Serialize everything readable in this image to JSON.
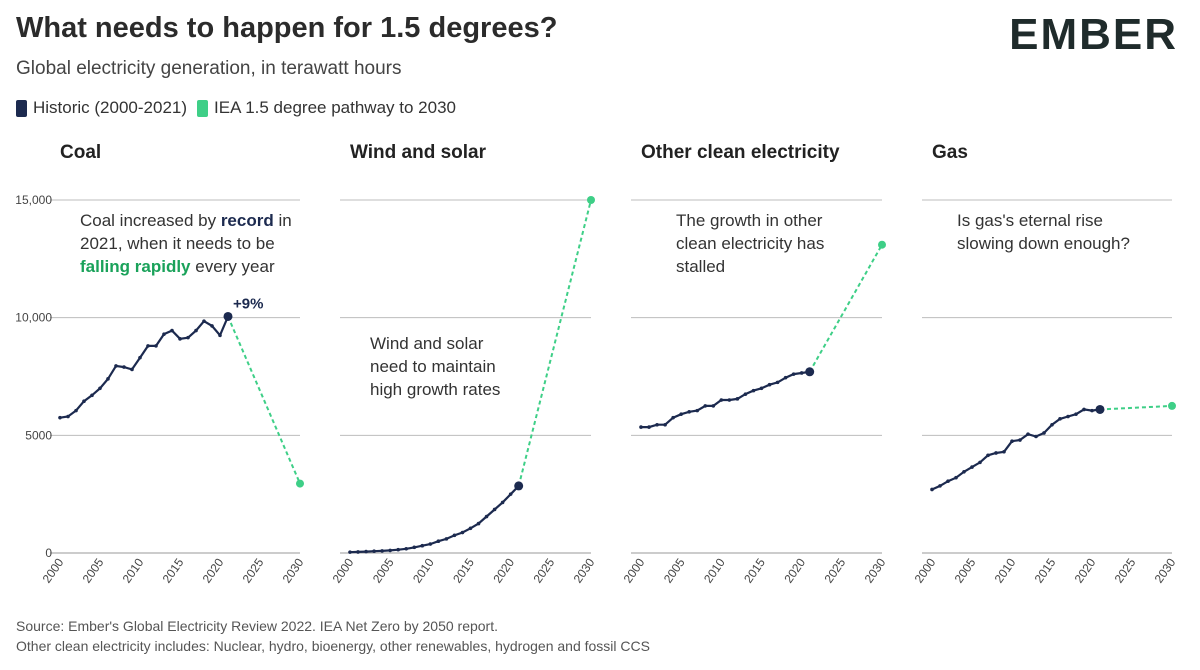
{
  "header": {
    "title": "What needs to happen for 1.5 degrees?",
    "subtitle": "Global electricity generation, in terawatt hours",
    "logo": "EMBER"
  },
  "legend": [
    {
      "label": "Historic (2000-2021)",
      "color": "#1c2a4f"
    },
    {
      "label": "IEA 1.5 degree pathway to 2030",
      "color": "#3ecf87"
    }
  ],
  "footer": {
    "source": "Source: Ember's Global Electricity Review 2022. IEA Net Zero by 2050 report.",
    "note": "Other clean electricity includes: Nuclear, hydro, bioenergy, other renewables, hydrogen and fossil CCS"
  },
  "colors": {
    "historic": "#1c2a4f",
    "pathway": "#3ecf87",
    "highlight_green": "#1aa25a",
    "grid": "#bdbdbd"
  },
  "chart_data": {
    "type": "line",
    "ylim": [
      0,
      15000
    ],
    "y_ticks": [
      0,
      5000,
      10000,
      15000
    ],
    "y_tick_labels": [
      "0",
      "5000",
      "10,000",
      "15,000"
    ],
    "xlim": [
      2000,
      2030
    ],
    "x_ticks": [
      "2000",
      "2005",
      "2010",
      "2015",
      "2020",
      "2025",
      "2030"
    ],
    "grid": true,
    "legend_position": "top-left",
    "panels": [
      {
        "title": "Coal",
        "historic": {
          "years": [
            2000,
            2001,
            2002,
            2003,
            2004,
            2005,
            2006,
            2007,
            2008,
            2009,
            2010,
            2011,
            2012,
            2013,
            2014,
            2015,
            2016,
            2017,
            2018,
            2019,
            2020,
            2021
          ],
          "values": [
            5750,
            5800,
            6050,
            6450,
            6700,
            7000,
            7400,
            7950,
            7900,
            7800,
            8300,
            8800,
            8800,
            9300,
            9450,
            9100,
            9150,
            9450,
            9850,
            9650,
            9250,
            10050
          ]
        },
        "pathway": {
          "years": [
            2021,
            2030
          ],
          "values": [
            10050,
            2950
          ]
        },
        "point_label": "+9%",
        "annotation": [
          [
            {
              "t": "Coal increased by "
            },
            {
              "t": "record",
              "style": "bold-navy"
            },
            {
              "t": " in"
            }
          ],
          [
            {
              "t": "2021, when it needs to be"
            }
          ],
          [
            {
              "t": "falling rapidly",
              "style": "bold-green"
            },
            {
              "t": " every year"
            }
          ]
        ]
      },
      {
        "title": "Wind and solar",
        "historic": {
          "years": [
            2000,
            2001,
            2002,
            2003,
            2004,
            2005,
            2006,
            2007,
            2008,
            2009,
            2010,
            2011,
            2012,
            2013,
            2014,
            2015,
            2016,
            2017,
            2018,
            2019,
            2020,
            2021
          ],
          "values": [
            35,
            45,
            60,
            75,
            90,
            110,
            140,
            180,
            240,
            310,
            380,
            500,
            600,
            750,
            870,
            1050,
            1250,
            1550,
            1850,
            2150,
            2500,
            2850
          ]
        },
        "pathway": {
          "years": [
            2021,
            2030
          ],
          "values": [
            2850,
            15000
          ]
        },
        "annotation": [
          [
            {
              "t": "Wind and solar"
            }
          ],
          [
            {
              "t": "need to maintain"
            }
          ],
          [
            {
              "t": "high growth rates"
            }
          ]
        ]
      },
      {
        "title": "Other clean electricity",
        "historic": {
          "years": [
            2000,
            2001,
            2002,
            2003,
            2004,
            2005,
            2006,
            2007,
            2008,
            2009,
            2010,
            2011,
            2012,
            2013,
            2014,
            2015,
            2016,
            2017,
            2018,
            2019,
            2020,
            2021
          ],
          "values": [
            5350,
            5350,
            5450,
            5450,
            5750,
            5900,
            6000,
            6050,
            6250,
            6250,
            6500,
            6500,
            6550,
            6750,
            6900,
            7000,
            7150,
            7250,
            7450,
            7600,
            7650,
            7700
          ]
        },
        "pathway": {
          "years": [
            2021,
            2030
          ],
          "values": [
            7700,
            13100
          ]
        },
        "annotation": [
          [
            {
              "t": "The growth in other"
            }
          ],
          [
            {
              "t": "clean electricity has"
            }
          ],
          [
            {
              "t": "stalled"
            }
          ]
        ]
      },
      {
        "title": "Gas",
        "historic": {
          "years": [
            2000,
            2001,
            2002,
            2003,
            2004,
            2005,
            2006,
            2007,
            2008,
            2009,
            2010,
            2011,
            2012,
            2013,
            2014,
            2015,
            2016,
            2017,
            2018,
            2019,
            2020,
            2021
          ],
          "values": [
            2700,
            2850,
            3050,
            3200,
            3450,
            3650,
            3850,
            4150,
            4250,
            4300,
            4750,
            4800,
            5050,
            4950,
            5100,
            5450,
            5700,
            5800,
            5900,
            6100,
            6050,
            6100
          ]
        },
        "pathway": {
          "years": [
            2021,
            2030
          ],
          "values": [
            6100,
            6250
          ]
        },
        "annotation": [
          [
            {
              "t": "Is gas's eternal rise"
            }
          ],
          [
            {
              "t": "slowing down enough?"
            }
          ]
        ]
      }
    ]
  }
}
